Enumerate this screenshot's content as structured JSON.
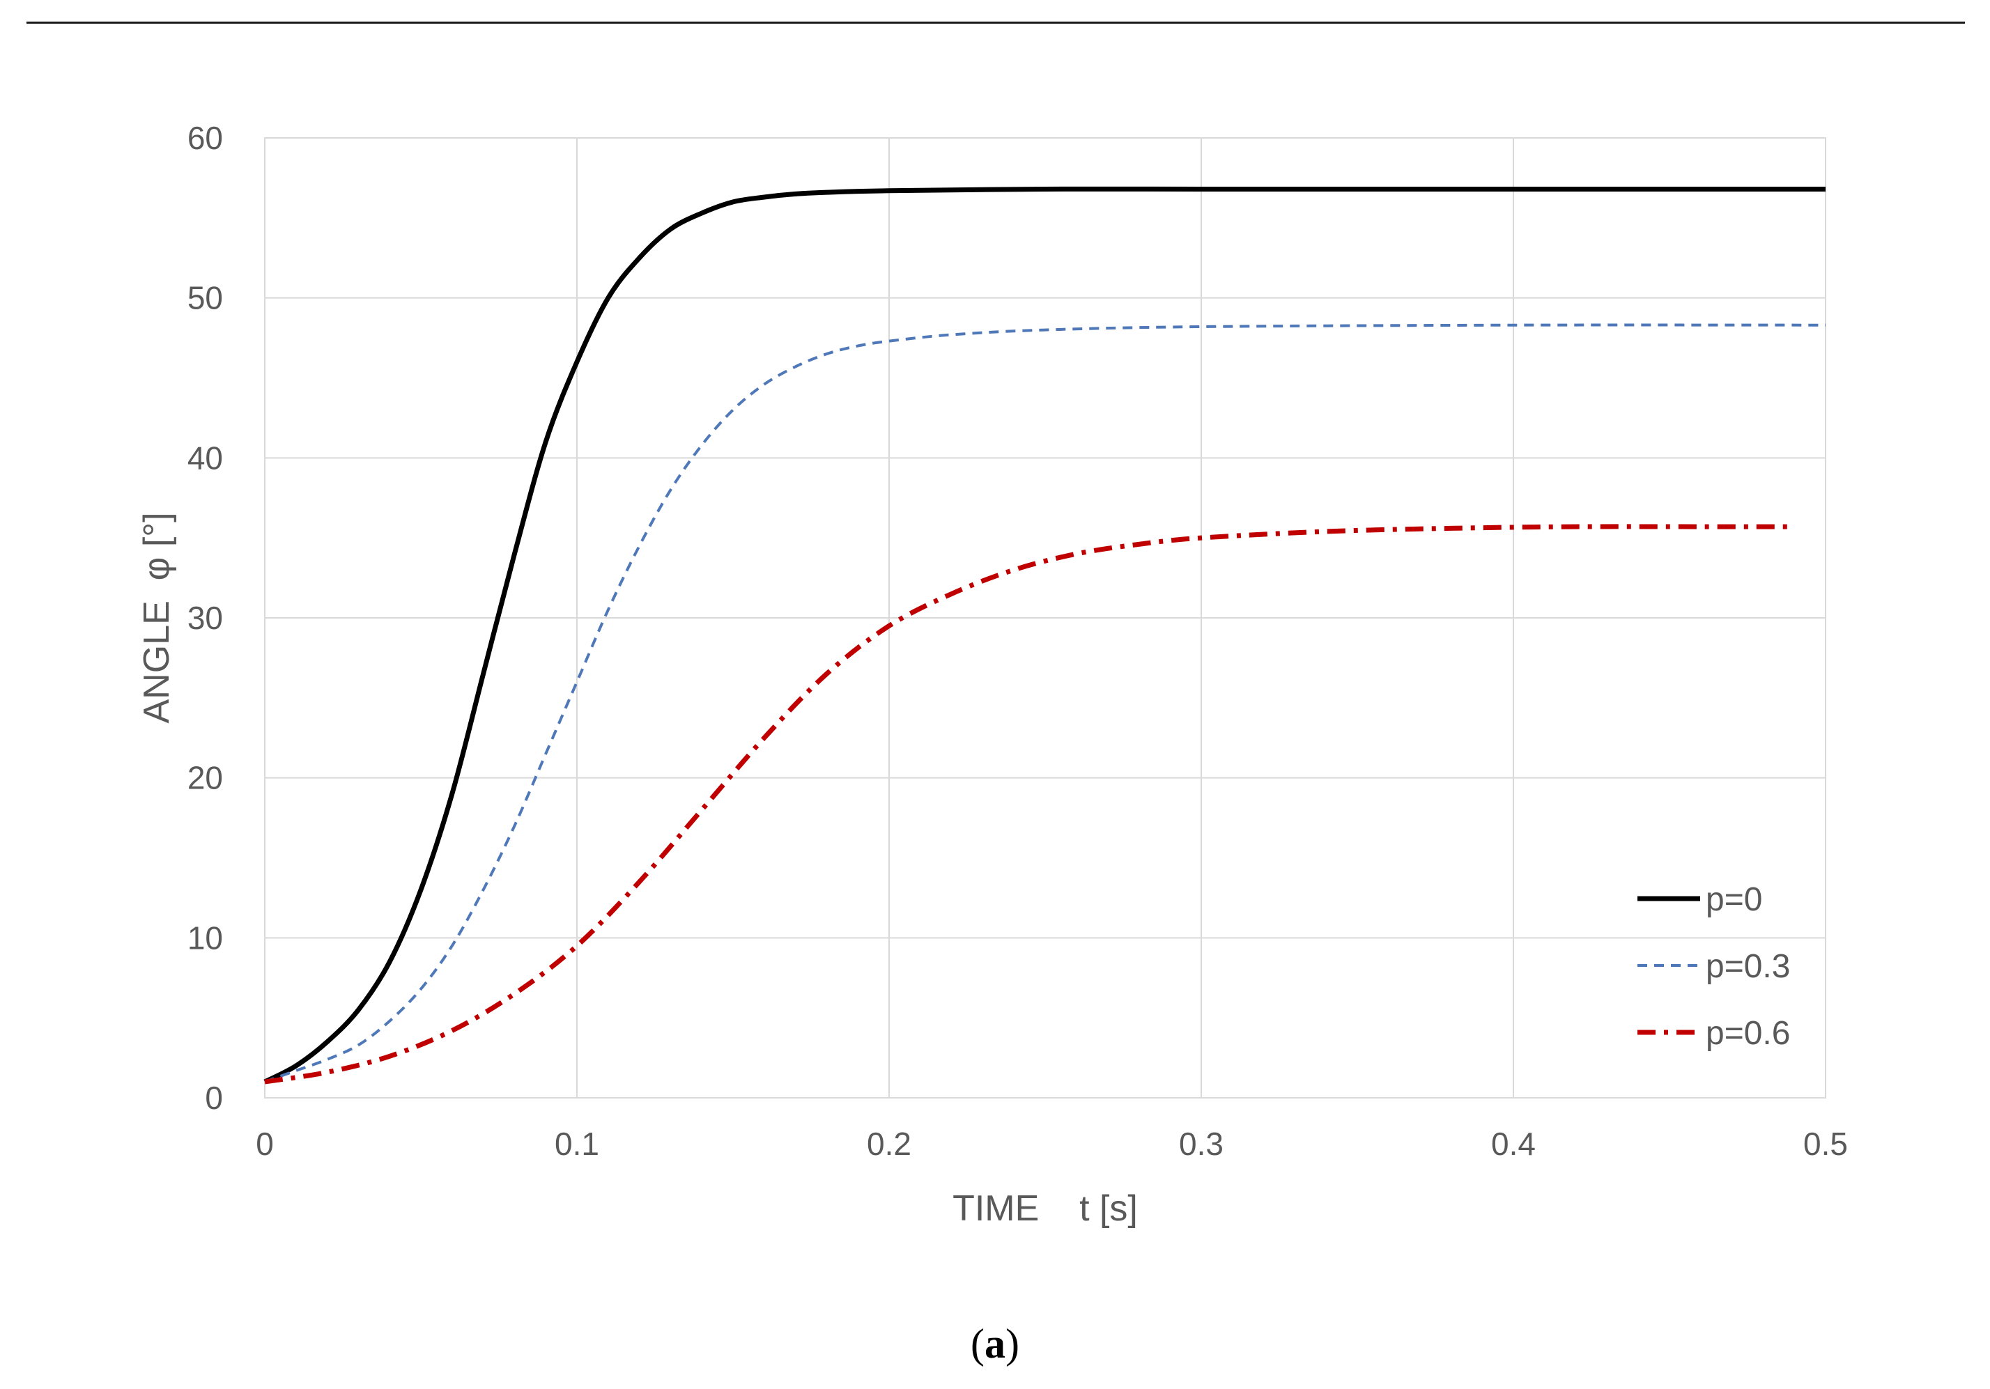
{
  "caption": {
    "open": "(",
    "letter": "a",
    "close": ")"
  },
  "chart_data": {
    "type": "line",
    "xlabel": "TIME    t [s]",
    "ylabel": "ANGLE  φ [°]",
    "xlim": [
      0,
      0.5
    ],
    "ylim": [
      0,
      60
    ],
    "xticks": [
      0,
      0.1,
      0.2,
      0.3,
      0.4,
      0.5
    ],
    "xtick_labels": [
      "0",
      "0.1",
      "0.2",
      "0.3",
      "0.4",
      "0.5"
    ],
    "yticks": [
      0,
      10,
      20,
      30,
      40,
      50,
      60
    ],
    "ytick_labels": [
      "0",
      "10",
      "20",
      "30",
      "40",
      "50",
      "60"
    ],
    "grid": true,
    "legend_position": "bottom-right",
    "series": [
      {
        "name": "p=0",
        "color": "#000000",
        "dash": "solid",
        "x": [
          0,
          0.01,
          0.02,
          0.03,
          0.04,
          0.05,
          0.06,
          0.07,
          0.08,
          0.09,
          0.1,
          0.11,
          0.12,
          0.13,
          0.14,
          0.15,
          0.16,
          0.17,
          0.18,
          0.2,
          0.25,
          0.3,
          0.4,
          0.5
        ],
        "y": [
          1,
          2,
          3.5,
          5.5,
          8.5,
          13,
          19,
          26.5,
          34,
          41,
          46,
          50,
          52.5,
          54.3,
          55.3,
          56,
          56.3,
          56.5,
          56.6,
          56.7,
          56.8,
          56.8,
          56.8,
          56.8
        ]
      },
      {
        "name": "p=0.3",
        "color": "#4f78b8",
        "dash": "dashed",
        "x": [
          0,
          0.01,
          0.02,
          0.03,
          0.04,
          0.05,
          0.06,
          0.07,
          0.08,
          0.09,
          0.1,
          0.11,
          0.12,
          0.13,
          0.14,
          0.15,
          0.16,
          0.17,
          0.18,
          0.19,
          0.2,
          0.22,
          0.25,
          0.3,
          0.4,
          0.5
        ],
        "y": [
          1,
          1.7,
          2.4,
          3.3,
          4.8,
          6.8,
          9.5,
          13,
          17,
          21.5,
          26,
          30.5,
          34.5,
          38,
          40.8,
          43,
          44.6,
          45.7,
          46.5,
          47,
          47.3,
          47.7,
          48,
          48.2,
          48.3,
          48.3
        ]
      },
      {
        "name": "p=0.6",
        "color": "#c00000",
        "dash": "dashdot",
        "x": [
          0,
          0.02,
          0.04,
          0.06,
          0.08,
          0.1,
          0.12,
          0.14,
          0.16,
          0.18,
          0.2,
          0.22,
          0.24,
          0.26,
          0.28,
          0.3,
          0.34,
          0.38,
          0.42,
          0.46,
          0.49
        ],
        "y": [
          1,
          1.6,
          2.6,
          4.2,
          6.5,
          9.5,
          13.5,
          18,
          22.5,
          26.5,
          29.5,
          31.5,
          33,
          34,
          34.6,
          35,
          35.4,
          35.6,
          35.7,
          35.7,
          35.7
        ]
      }
    ]
  }
}
